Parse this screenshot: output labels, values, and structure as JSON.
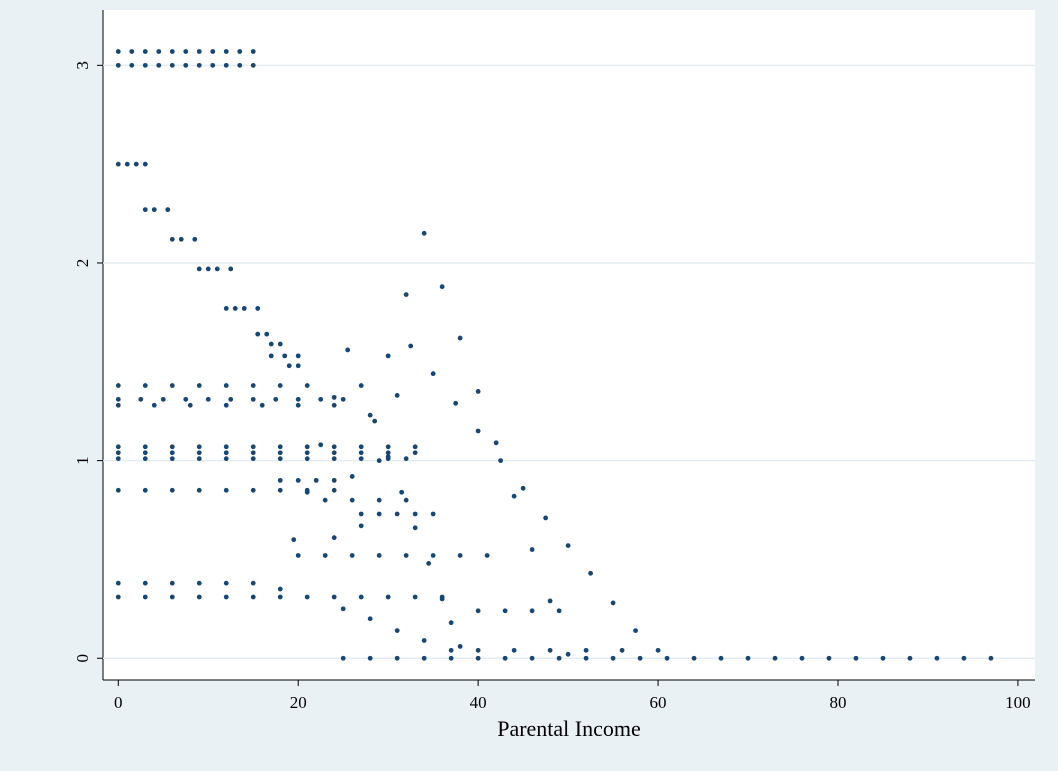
{
  "chart_data": {
    "type": "scatter",
    "x_label": "Parental Income",
    "color": "#1a476f",
    "xlim": [
      -1.7,
      101.9
    ],
    "ylim": [
      -0.11,
      3.28
    ],
    "xticks": [
      0,
      20,
      40,
      60,
      80,
      100
    ],
    "yticks": [
      0,
      1,
      2,
      3
    ],
    "grid": true,
    "x": [
      0,
      1.5,
      3,
      4.5,
      6,
      7.5,
      9,
      10.5,
      12,
      13.5,
      15,
      0,
      1.5,
      3,
      4.5,
      6,
      7.5,
      9,
      10.5,
      12,
      13.5,
      15,
      0,
      1,
      2,
      3,
      3,
      4,
      5.5,
      6,
      7,
      8.5,
      9,
      10,
      11,
      12.5,
      12,
      13,
      14,
      15.5,
      15.5,
      16.5,
      17,
      18,
      17,
      18.5,
      20,
      19,
      20,
      0,
      3,
      6,
      9,
      12,
      15,
      18,
      21,
      0,
      2.5,
      5,
      7.5,
      10,
      12.5,
      15,
      17.5,
      20,
      22.5,
      25,
      0,
      4,
      8,
      12,
      16,
      20,
      24,
      0,
      3,
      6,
      9,
      12,
      15,
      18,
      21,
      24,
      27,
      30,
      33,
      0,
      3,
      6,
      9,
      12,
      15,
      18,
      21,
      24,
      27,
      30,
      33,
      0,
      3,
      6,
      9,
      12,
      15,
      18,
      21,
      24,
      27,
      30,
      32,
      0,
      3,
      6,
      9,
      12,
      15,
      18,
      21,
      24,
      0,
      3,
      6,
      9,
      12,
      15,
      0,
      3,
      6,
      9,
      12,
      15,
      18,
      21,
      24,
      27,
      30,
      33,
      36,
      25,
      28,
      31,
      34,
      37,
      40,
      43,
      46,
      49,
      52,
      55,
      58,
      61,
      64,
      67,
      70,
      73,
      76,
      79,
      82,
      85,
      88,
      91,
      94,
      97,
      18,
      19.5,
      21,
      22.5,
      24,
      25.5,
      27,
      28.5,
      30,
      31.5,
      33,
      34.5,
      36,
      37,
      38,
      24,
      26,
      28,
      30,
      32,
      34,
      36,
      38,
      40,
      42,
      44,
      46,
      48,
      50,
      27,
      29,
      31,
      32.5,
      35,
      37.5,
      40,
      42.5,
      45,
      47.5,
      50,
      52.5,
      55,
      57.5,
      25,
      28,
      31,
      34,
      37,
      20,
      23,
      26,
      29,
      32,
      35,
      38,
      41,
      40,
      43,
      46,
      49,
      40,
      44,
      48,
      52,
      56,
      60,
      27,
      29,
      31,
      33,
      35,
      18,
      20,
      22,
      24,
      23,
      26,
      29,
      32
    ],
    "values": [
      3.07,
      3.07,
      3.07,
      3.07,
      3.07,
      3.07,
      3.07,
      3.07,
      3.07,
      3.07,
      3.07,
      3,
      3,
      3,
      3,
      3,
      3,
      3,
      3,
      3,
      3,
      3,
      2.5,
      2.5,
      2.5,
      2.5,
      2.27,
      2.27,
      2.27,
      2.12,
      2.12,
      2.12,
      1.97,
      1.97,
      1.97,
      1.97,
      1.77,
      1.77,
      1.77,
      1.77,
      1.64,
      1.64,
      1.59,
      1.59,
      1.53,
      1.53,
      1.53,
      1.48,
      1.48,
      1.38,
      1.38,
      1.38,
      1.38,
      1.38,
      1.38,
      1.38,
      1.38,
      1.31,
      1.31,
      1.31,
      1.31,
      1.31,
      1.31,
      1.31,
      1.31,
      1.31,
      1.31,
      1.31,
      1.28,
      1.28,
      1.28,
      1.28,
      1.28,
      1.28,
      1.28,
      1.07,
      1.07,
      1.07,
      1.07,
      1.07,
      1.07,
      1.07,
      1.07,
      1.07,
      1.07,
      1.07,
      1.07,
      1.04,
      1.04,
      1.04,
      1.04,
      1.04,
      1.04,
      1.04,
      1.04,
      1.04,
      1.04,
      1.04,
      1.04,
      1.01,
      1.01,
      1.01,
      1.01,
      1.01,
      1.01,
      1.01,
      1.01,
      1.01,
      1.01,
      1.01,
      1.01,
      0.85,
      0.85,
      0.85,
      0.85,
      0.85,
      0.85,
      0.85,
      0.85,
      0.85,
      0.38,
      0.38,
      0.38,
      0.38,
      0.38,
      0.38,
      0.31,
      0.31,
      0.31,
      0.31,
      0.31,
      0.31,
      0.31,
      0.31,
      0.31,
      0.31,
      0.31,
      0.31,
      0.31,
      0,
      0,
      0,
      0,
      0,
      0,
      0,
      0,
      0,
      0,
      0,
      0,
      0,
      0,
      0,
      0,
      0,
      0,
      0,
      0,
      0,
      0,
      0,
      0,
      0,
      0.35,
      0.6,
      0.84,
      1.08,
      1.32,
      1.56,
      1.38,
      1.2,
      1.02,
      0.84,
      0.66,
      0.48,
      0.3,
      0.18,
      0.06,
      0.61,
      0.92,
      1.23,
      1.53,
      1.84,
      2.15,
      1.88,
      1.62,
      1.35,
      1.09,
      0.82,
      0.55,
      0.29,
      0.02,
      0.67,
      1,
      1.33,
      1.58,
      1.44,
      1.29,
      1.15,
      1,
      0.86,
      0.71,
      0.57,
      0.43,
      0.28,
      0.14,
      0.25,
      0.2,
      0.14,
      0.09,
      0.04,
      0.52,
      0.52,
      0.52,
      0.52,
      0.52,
      0.52,
      0.52,
      0.52,
      0.24,
      0.24,
      0.24,
      0.24,
      0.04,
      0.04,
      0.04,
      0.04,
      0.04,
      0.04,
      0.73,
      0.73,
      0.73,
      0.73,
      0.73,
      0.9,
      0.9,
      0.9,
      0.9,
      0.8,
      0.8,
      0.8,
      0.8
    ]
  }
}
